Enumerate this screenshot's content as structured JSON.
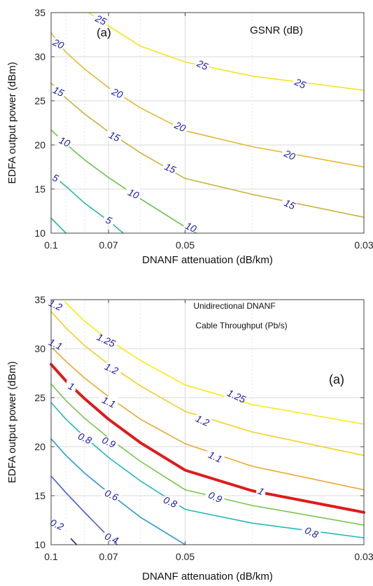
{
  "chart_data": [
    {
      "type": "contour",
      "panel_label": "(a)",
      "annotation": "GSNR (dB)",
      "xlabel": "DNANF attenuation (dB/km)",
      "ylabel": "EDFA output power (dBm)",
      "x_scale": "reciprocal",
      "xlim": [
        0.1,
        0.03
      ],
      "ylim": [
        10,
        35
      ],
      "xticks": [
        0.1,
        0.07,
        0.05,
        0.03
      ],
      "xtick_labels": [
        "0.1",
        "0.07",
        "0.05",
        "0.03"
      ],
      "yticks": [
        10,
        15,
        20,
        25,
        30,
        35
      ],
      "ytick_labels": [
        "10",
        "15",
        "20",
        "25",
        "30",
        "35"
      ],
      "grid": true,
      "contours": [
        {
          "level": "5",
          "color": "#2ab5a5",
          "points": [
            [
              0.1,
              11.7
            ],
            [
              0.09,
              10.0
            ]
          ],
          "labels": []
        },
        {
          "level": "5",
          "color": "#2ab5a5",
          "points": [
            [
              0.1,
              16.7
            ],
            [
              0.09,
              15.3
            ],
            [
              0.08,
              13.4
            ],
            [
              0.07,
              11.4
            ],
            [
              0.065,
              10.0
            ]
          ],
          "labels": [
            {
              "text": "5",
              "x": 0.097,
              "y": 16.2
            },
            {
              "text": "5",
              "x": 0.07,
              "y": 11.4
            }
          ]
        },
        {
          "level": "10",
          "color": "#6cc04a",
          "points": [
            [
              0.1,
              21.7
            ],
            [
              0.09,
              20.1
            ],
            [
              0.08,
              18.3
            ],
            [
              0.07,
              16.3
            ],
            [
              0.06,
              13.9
            ],
            [
              0.05,
              10.7
            ],
            [
              0.048,
              10.0
            ]
          ],
          "labels": [
            {
              "text": "10",
              "x": 0.091,
              "y": 20.3
            },
            {
              "text": "10",
              "x": 0.062,
              "y": 14.4
            },
            {
              "text": "10",
              "x": 0.049,
              "y": 10.6
            }
          ]
        },
        {
          "level": "15",
          "color": "#c8b23a",
          "points": [
            [
              0.1,
              27.0
            ],
            [
              0.09,
              25.3
            ],
            [
              0.08,
              23.5
            ],
            [
              0.07,
              21.5
            ],
            [
              0.06,
              19.1
            ],
            [
              0.05,
              16.2
            ],
            [
              0.04,
              14.4
            ],
            [
              0.03,
              11.8
            ]
          ],
          "labels": [
            {
              "text": "15",
              "x": 0.095,
              "y": 26.0
            },
            {
              "text": "15",
              "x": 0.068,
              "y": 20.9
            },
            {
              "text": "15",
              "x": 0.053,
              "y": 17.3
            },
            {
              "text": "15",
              "x": 0.036,
              "y": 13.2
            }
          ]
        },
        {
          "level": "20",
          "color": "#e6b830",
          "points": [
            [
              0.1,
              32.7
            ],
            [
              0.09,
              30.5
            ],
            [
              0.08,
              28.6
            ],
            [
              0.07,
              26.5
            ],
            [
              0.06,
              24.2
            ],
            [
              0.05,
              21.6
            ],
            [
              0.04,
              19.8
            ],
            [
              0.03,
              17.5
            ]
          ],
          "labels": [
            {
              "text": "20",
              "x": 0.095,
              "y": 31.4
            },
            {
              "text": "20",
              "x": 0.067,
              "y": 25.8
            },
            {
              "text": "20",
              "x": 0.051,
              "y": 22.0
            },
            {
              "text": "20",
              "x": 0.036,
              "y": 18.8
            }
          ]
        },
        {
          "level": "25",
          "color": "#f5e31a",
          "points": [
            [
              0.078,
              35.0
            ],
            [
              0.07,
              33.5
            ],
            [
              0.06,
              31.2
            ],
            [
              0.05,
              29.4
            ],
            [
              0.04,
              27.8
            ],
            [
              0.03,
              26.2
            ]
          ],
          "labels": [
            {
              "text": "25",
              "x": 0.073,
              "y": 34.1
            },
            {
              "text": "25",
              "x": 0.047,
              "y": 29.0
            },
            {
              "text": "25",
              "x": 0.035,
              "y": 26.9
            }
          ]
        }
      ]
    },
    {
      "type": "contour",
      "panel_label": "(a)",
      "annotation": [
        "Unidirectional DNANF",
        "Cable Throughput (Pb/s)"
      ],
      "xlabel": "DNANF attenuation (dB/km)",
      "ylabel": "EDFA output power (dBm)",
      "x_scale": "reciprocal",
      "xlim": [
        0.1,
        0.03
      ],
      "ylim": [
        10,
        35
      ],
      "xticks": [
        0.1,
        0.07,
        0.05,
        0.03
      ],
      "xtick_labels": [
        "0.1",
        "0.07",
        "0.05",
        "0.03"
      ],
      "yticks": [
        10,
        15,
        20,
        25,
        30,
        35
      ],
      "ytick_labels": [
        "10",
        "15",
        "20",
        "25",
        "30",
        "35"
      ],
      "grid": true,
      "contours": [
        {
          "level": "0.2",
          "color": "#2a1a8a",
          "points": [
            [
              0.087,
              10.6
            ],
            [
              0.084,
              10.0
            ]
          ],
          "labels": [
            {
              "text": "0.2",
              "x": 0.096,
              "y": 12.0
            }
          ]
        },
        {
          "level": "0.4",
          "color": "#4a5ad8",
          "points": [
            [
              0.1,
              17.0
            ],
            [
              0.09,
              15.3
            ],
            [
              0.08,
              13.3
            ],
            [
              0.07,
              10.8
            ],
            [
              0.067,
              10.0
            ]
          ],
          "labels": [
            {
              "text": "0.4",
              "x": 0.069,
              "y": 10.6
            }
          ]
        },
        {
          "level": "0.6",
          "color": "#2a96d8",
          "points": [
            [
              0.1,
              20.8
            ],
            [
              0.09,
              19.1
            ],
            [
              0.08,
              17.3
            ],
            [
              0.07,
              15.3
            ],
            [
              0.06,
              12.8
            ],
            [
              0.05,
              10.0
            ]
          ],
          "labels": [
            {
              "text": "0.6",
              "x": 0.069,
              "y": 15.0
            }
          ]
        },
        {
          "level": "0.8",
          "color": "#22b8b8",
          "points": [
            [
              0.1,
              24.5
            ],
            [
              0.09,
              22.8
            ],
            [
              0.08,
              21.0
            ],
            [
              0.07,
              18.9
            ],
            [
              0.06,
              16.5
            ],
            [
              0.05,
              13.6
            ],
            [
              0.04,
              12.2
            ],
            [
              0.03,
              10.7
            ]
          ],
          "labels": [
            {
              "text": "0.8",
              "x": 0.08,
              "y": 20.8
            },
            {
              "text": "0.8",
              "x": 0.053,
              "y": 14.3
            },
            {
              "text": "0.8",
              "x": 0.034,
              "y": 11.2
            }
          ]
        },
        {
          "level": "0.9",
          "color": "#7ac44a",
          "points": [
            [
              0.1,
              26.4
            ],
            [
              0.09,
              24.7
            ],
            [
              0.08,
              22.9
            ],
            [
              0.07,
              20.9
            ],
            [
              0.06,
              18.5
            ],
            [
              0.05,
              15.6
            ],
            [
              0.04,
              14.0
            ],
            [
              0.03,
              12.0
            ]
          ],
          "labels": [
            {
              "text": "0.9",
              "x": 0.07,
              "y": 20.4
            },
            {
              "text": "0.9",
              "x": 0.045,
              "y": 14.8
            }
          ]
        },
        {
          "level": "1",
          "color": "#e01a1a",
          "points": [
            [
              0.1,
              28.4
            ],
            [
              0.09,
              26.7
            ],
            [
              0.08,
              24.9
            ],
            [
              0.07,
              22.8
            ],
            [
              0.06,
              20.4
            ],
            [
              0.05,
              17.6
            ],
            [
              0.04,
              15.5
            ],
            [
              0.03,
              13.3
            ]
          ],
          "labels": [
            {
              "text": "1",
              "x": 0.087,
              "y": 26.1
            },
            {
              "text": "1",
              "x": 0.039,
              "y": 15.4
            }
          ]
        },
        {
          "level": "1.1",
          "color": "#eaa830",
          "points": [
            [
              0.1,
              30.2
            ],
            [
              0.09,
              28.7
            ],
            [
              0.08,
              27.0
            ],
            [
              0.07,
              25.1
            ],
            [
              0.06,
              22.8
            ],
            [
              0.05,
              20.3
            ],
            [
              0.04,
              18.0
            ],
            [
              0.03,
              15.6
            ]
          ],
          "labels": [
            {
              "text": "1.1",
              "x": 0.097,
              "y": 30.4
            },
            {
              "text": "1.1",
              "x": 0.07,
              "y": 24.5
            },
            {
              "text": "1.1",
              "x": 0.045,
              "y": 18.9
            }
          ]
        },
        {
          "level": "1.2",
          "color": "#f0d020",
          "points": [
            [
              0.1,
              33.8
            ],
            [
              0.09,
              32.1
            ],
            [
              0.08,
              30.3
            ],
            [
              0.07,
              28.4
            ],
            [
              0.06,
              26.2
            ],
            [
              0.05,
              23.6
            ],
            [
              0.04,
              21.5
            ],
            [
              0.03,
              19.1
            ]
          ],
          "labels": [
            {
              "text": "1.2",
              "x": 0.097,
              "y": 34.4
            },
            {
              "text": "1.2",
              "x": 0.069,
              "y": 27.9
            },
            {
              "text": "1.2",
              "x": 0.047,
              "y": 22.6
            }
          ]
        },
        {
          "level": "1.25",
          "color": "#f8ec10",
          "points": [
            [
              0.092,
              35.0
            ],
            [
              0.08,
              32.8
            ],
            [
              0.07,
              30.9
            ],
            [
              0.06,
              28.8
            ],
            [
              0.05,
              26.3
            ],
            [
              0.04,
              24.3
            ],
            [
              0.03,
              22.3
            ]
          ],
          "labels": [
            {
              "text": "1.25",
              "x": 0.071,
              "y": 30.8
            },
            {
              "text": "1.25",
              "x": 0.042,
              "y": 25.1
            }
          ]
        }
      ]
    }
  ]
}
